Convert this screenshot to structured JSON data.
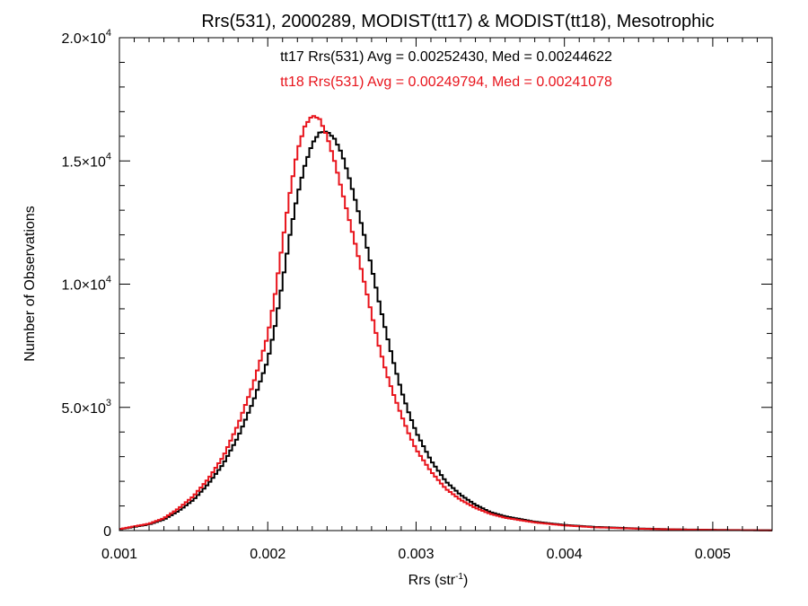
{
  "chart_data": {
    "type": "line",
    "title": "Rrs(531), 2000289, MODIST(tt17) & MODIST(tt18), Mesotrophic",
    "xlabel": "Rrs (str",
    "xlabel_sup": "-1",
    "xlabel_close": ")",
    "ylabel": "Number of Observations",
    "xlim": [
      0.001,
      0.0054
    ],
    "ylim": [
      0,
      20000
    ],
    "x_ticks": [
      {
        "value": 0.001,
        "label": "0.001"
      },
      {
        "value": 0.002,
        "label": "0.002"
      },
      {
        "value": 0.003,
        "label": "0.003"
      },
      {
        "value": 0.004,
        "label": "0.004"
      },
      {
        "value": 0.005,
        "label": "0.005"
      }
    ],
    "y_ticks": [
      {
        "value": 0,
        "label": "0",
        "sup": ""
      },
      {
        "value": 5000,
        "label": "5.0×10",
        "sup": "3"
      },
      {
        "value": 10000,
        "label": "1.0×10",
        "sup": "4"
      },
      {
        "value": 15000,
        "label": "1.5×10",
        "sup": "4"
      },
      {
        "value": 20000,
        "label": "2.0×10",
        "sup": "4"
      }
    ],
    "annotations": [
      {
        "text": "tt17 Rrs(531) Avg = 0.00252430, Med = 0.00244622",
        "color": "#000000"
      },
      {
        "text": "tt18 Rrs(531) Avg = 0.00249794, Med = 0.00241078",
        "color": "#e8141c"
      }
    ],
    "series": [
      {
        "color": "#000000",
        "x": [
          0.001,
          0.0012,
          0.0013,
          0.0014,
          0.0015,
          0.0016,
          0.0017,
          0.0018,
          0.0019,
          0.002,
          0.00205,
          0.0021,
          0.00215,
          0.0022,
          0.00225,
          0.0023,
          0.00235,
          0.0024,
          0.00245,
          0.0025,
          0.00255,
          0.0026,
          0.00265,
          0.0027,
          0.00275,
          0.0028,
          0.00285,
          0.0029,
          0.00295,
          0.003,
          0.0031,
          0.0032,
          0.0033,
          0.0034,
          0.0035,
          0.0036,
          0.0038,
          0.004,
          0.0042,
          0.0045,
          0.0048,
          0.0051,
          0.0054
        ],
        "y": [
          50,
          250,
          450,
          800,
          1250,
          1900,
          2700,
          3800,
          5200,
          6900,
          8300,
          10100,
          12000,
          13600,
          14800,
          15700,
          16150,
          16200,
          15900,
          15300,
          14300,
          13200,
          12000,
          10700,
          9300,
          8000,
          6800,
          5700,
          4800,
          4000,
          2850,
          2000,
          1450,
          1050,
          750,
          580,
          360,
          230,
          150,
          85,
          45,
          25,
          10
        ]
      },
      {
        "color": "#e8141c",
        "x": [
          0.001,
          0.0012,
          0.0013,
          0.0014,
          0.0015,
          0.0016,
          0.0017,
          0.0018,
          0.0019,
          0.002,
          0.00205,
          0.0021,
          0.00215,
          0.0022,
          0.00225,
          0.0023,
          0.00235,
          0.0024,
          0.00245,
          0.0025,
          0.00255,
          0.0026,
          0.00265,
          0.0027,
          0.00275,
          0.0028,
          0.00285,
          0.0029,
          0.00295,
          0.003,
          0.0031,
          0.0032,
          0.0033,
          0.0034,
          0.0035,
          0.0036,
          0.0038,
          0.004,
          0.0042,
          0.0045,
          0.0048,
          0.0051,
          0.0054
        ],
        "y": [
          60,
          280,
          500,
          900,
          1400,
          2100,
          3000,
          4300,
          5900,
          7900,
          9600,
          11700,
          13700,
          15400,
          16400,
          16850,
          16700,
          16000,
          15000,
          13800,
          12600,
          11400,
          10100,
          8800,
          7500,
          6400,
          5500,
          4700,
          3950,
          3300,
          2400,
          1700,
          1250,
          920,
          680,
          520,
          330,
          210,
          135,
          75,
          40,
          20,
          8
        ]
      }
    ]
  }
}
